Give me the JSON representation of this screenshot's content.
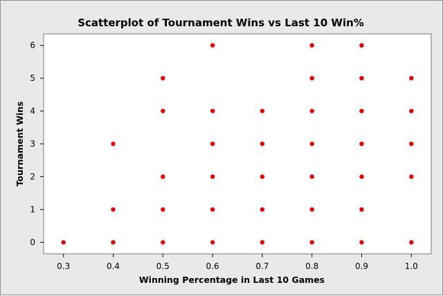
{
  "chart_data": {
    "type": "scatter",
    "title": "Scatterplot of Tournament Wins vs Last 10 Win%",
    "xlabel": "Winning Percentage in Last 10 Games",
    "ylabel": "Tournament Wins",
    "xlim": [
      0.26,
      1.04
    ],
    "ylim": [
      -0.35,
      6.35
    ],
    "x_ticks": [
      0.3,
      0.4,
      0.5,
      0.6,
      0.7,
      0.8,
      0.9,
      1.0
    ],
    "x_tick_labels": [
      "0.3",
      "0.4",
      "0.5",
      "0.6",
      "0.7",
      "0.8",
      "0.9",
      "1.0"
    ],
    "y_ticks": [
      0,
      1,
      2,
      3,
      4,
      5,
      6
    ],
    "y_tick_labels": [
      "0",
      "1",
      "2",
      "3",
      "4",
      "5",
      "6"
    ],
    "grid": false,
    "marker_color": "#e00000",
    "points": [
      {
        "x": 0.3,
        "y": 0
      },
      {
        "x": 0.4,
        "y": 0
      },
      {
        "x": 0.4,
        "y": 1
      },
      {
        "x": 0.4,
        "y": 3
      },
      {
        "x": 0.5,
        "y": 0
      },
      {
        "x": 0.5,
        "y": 1
      },
      {
        "x": 0.5,
        "y": 2
      },
      {
        "x": 0.5,
        "y": 4
      },
      {
        "x": 0.5,
        "y": 5
      },
      {
        "x": 0.6,
        "y": 0
      },
      {
        "x": 0.6,
        "y": 1
      },
      {
        "x": 0.6,
        "y": 2
      },
      {
        "x": 0.6,
        "y": 3
      },
      {
        "x": 0.6,
        "y": 4
      },
      {
        "x": 0.6,
        "y": 6
      },
      {
        "x": 0.7,
        "y": 0
      },
      {
        "x": 0.7,
        "y": 1
      },
      {
        "x": 0.7,
        "y": 2
      },
      {
        "x": 0.7,
        "y": 3
      },
      {
        "x": 0.7,
        "y": 4
      },
      {
        "x": 0.8,
        "y": 0
      },
      {
        "x": 0.8,
        "y": 1
      },
      {
        "x": 0.8,
        "y": 2
      },
      {
        "x": 0.8,
        "y": 3
      },
      {
        "x": 0.8,
        "y": 4
      },
      {
        "x": 0.8,
        "y": 5
      },
      {
        "x": 0.8,
        "y": 6
      },
      {
        "x": 0.9,
        "y": 0
      },
      {
        "x": 0.9,
        "y": 1
      },
      {
        "x": 0.9,
        "y": 2
      },
      {
        "x": 0.9,
        "y": 3
      },
      {
        "x": 0.9,
        "y": 4
      },
      {
        "x": 0.9,
        "y": 5
      },
      {
        "x": 0.9,
        "y": 6
      },
      {
        "x": 1.0,
        "y": 0
      },
      {
        "x": 1.0,
        "y": 2
      },
      {
        "x": 1.0,
        "y": 3
      },
      {
        "x": 1.0,
        "y": 4
      },
      {
        "x": 1.0,
        "y": 5
      }
    ]
  }
}
